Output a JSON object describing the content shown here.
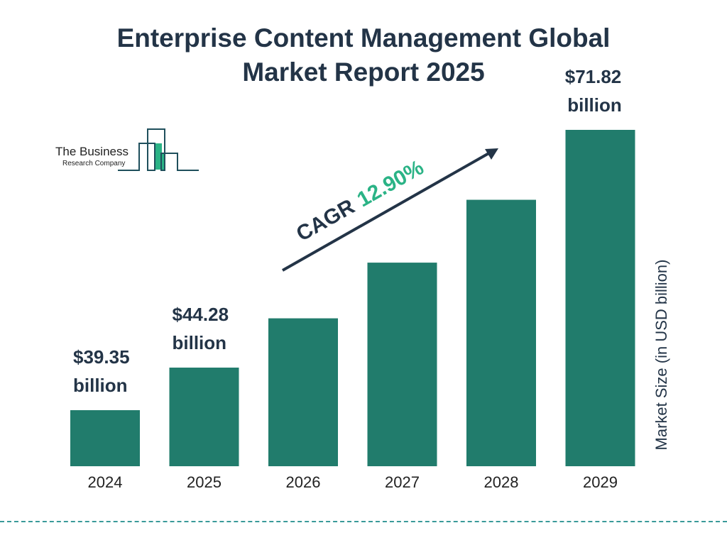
{
  "title_line1": "Enterprise Content Management Global",
  "title_line2": "Market Report 2025",
  "logo": {
    "line1": "The Business",
    "line2": "Research Company"
  },
  "cagr": {
    "label": "CAGR",
    "value": "12.90%"
  },
  "colors": {
    "bar": "#217c6c",
    "text": "#233447",
    "cagr": "#2bb386",
    "divider": "#3a9a99"
  },
  "chart_data": {
    "type": "bar",
    "title": "Enterprise Content Management Global Market Report 2025",
    "categories": [
      "2024",
      "2025",
      "2026",
      "2027",
      "2028",
      "2029"
    ],
    "values": [
      39.35,
      44.28,
      49.99,
      56.44,
      63.72,
      71.82
    ],
    "data_labels": [
      [
        "$39.35",
        "billion"
      ],
      [
        "$44.28",
        "billion"
      ],
      null,
      null,
      null,
      [
        "$71.82",
        "billion"
      ]
    ],
    "xlabel": "",
    "ylabel": "Market Size (in USD billion)",
    "grid": false,
    "legend": "none"
  }
}
